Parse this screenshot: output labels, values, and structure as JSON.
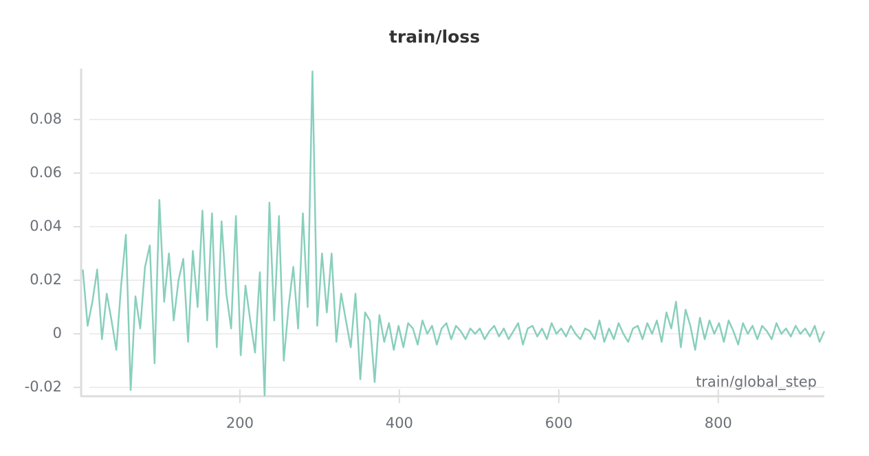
{
  "chart_data": {
    "type": "line",
    "title": "train/loss",
    "x_label": "train/global_step",
    "x": [
      3,
      9,
      15,
      21,
      27,
      33,
      39,
      45,
      51,
      57,
      63,
      69,
      75,
      81,
      87,
      93,
      99,
      105,
      111,
      117,
      123,
      129,
      135,
      141,
      147,
      153,
      159,
      165,
      171,
      177,
      183,
      189,
      195,
      201,
      207,
      213,
      219,
      225,
      231,
      237,
      243,
      249,
      255,
      261,
      267,
      273,
      279,
      285,
      291,
      297,
      303,
      309,
      315,
      321,
      327,
      333,
      339,
      345,
      351,
      357,
      363,
      369,
      375,
      381,
      387,
      393,
      399,
      405,
      411,
      417,
      423,
      429,
      435,
      441,
      447,
      453,
      459,
      465,
      471,
      477,
      483,
      489,
      495,
      501,
      507,
      513,
      519,
      525,
      531,
      537,
      543,
      549,
      555,
      561,
      567,
      573,
      579,
      585,
      591,
      597,
      603,
      609,
      615,
      621,
      627,
      633,
      639,
      645,
      651,
      657,
      663,
      669,
      675,
      681,
      687,
      693,
      699,
      705,
      711,
      717,
      723,
      729,
      735,
      741,
      747,
      753,
      759,
      765,
      771,
      777,
      783,
      789,
      795,
      801,
      807,
      813,
      819,
      825,
      831,
      837,
      843,
      849,
      855,
      861,
      867,
      873,
      879,
      885,
      891,
      897,
      903,
      909,
      915,
      921,
      927,
      933
    ],
    "series": [
      {
        "name": "train/loss",
        "color": "#88cfbc",
        "values": [
          0.024,
          0.003,
          0.012,
          0.024,
          -0.002,
          0.015,
          0.005,
          -0.006,
          0.018,
          0.037,
          -0.021,
          0.014,
          0.002,
          0.025,
          0.033,
          -0.011,
          0.05,
          0.012,
          0.03,
          0.005,
          0.02,
          0.028,
          -0.003,
          0.031,
          0.01,
          0.046,
          0.005,
          0.045,
          -0.005,
          0.042,
          0.015,
          0.002,
          0.044,
          -0.008,
          0.018,
          0.005,
          -0.007,
          0.023,
          -0.023,
          0.049,
          0.005,
          0.044,
          -0.01,
          0.01,
          0.025,
          0.002,
          0.045,
          0.01,
          0.098,
          0.003,
          0.03,
          0.008,
          0.03,
          -0.003,
          0.015,
          0.005,
          -0.005,
          0.015,
          -0.017,
          0.008,
          0.005,
          -0.018,
          0.007,
          -0.003,
          0.004,
          -0.006,
          0.003,
          -0.005,
          0.004,
          0.002,
          -0.004,
          0.005,
          0.0,
          0.003,
          -0.004,
          0.002,
          0.004,
          -0.002,
          0.003,
          0.001,
          -0.002,
          0.002,
          0.0,
          0.002,
          -0.002,
          0.001,
          0.003,
          -0.001,
          0.002,
          -0.002,
          0.001,
          0.004,
          -0.004,
          0.002,
          0.003,
          -0.001,
          0.002,
          -0.002,
          0.004,
          0.0,
          0.002,
          -0.001,
          0.003,
          0.0,
          -0.002,
          0.002,
          0.001,
          -0.002,
          0.005,
          -0.003,
          0.002,
          -0.002,
          0.004,
          0.0,
          -0.003,
          0.002,
          0.003,
          -0.002,
          0.004,
          0.0,
          0.005,
          -0.003,
          0.008,
          0.002,
          0.012,
          -0.005,
          0.009,
          0.003,
          -0.006,
          0.006,
          -0.002,
          0.005,
          0.0,
          0.004,
          -0.003,
          0.005,
          0.001,
          -0.004,
          0.004,
          0.0,
          0.003,
          -0.002,
          0.003,
          0.001,
          -0.002,
          0.004,
          0.0,
          0.002,
          -0.001,
          0.003,
          0.0,
          0.002,
          -0.001,
          0.003,
          -0.003,
          0.001
        ]
      }
    ],
    "xlim": [
      0,
      933
    ],
    "ylim": [
      -0.0233,
      0.099
    ],
    "xticks": [
      200,
      400,
      600,
      800
    ],
    "yticks": [
      -0.02,
      0,
      0.02,
      0.04,
      0.06,
      0.08
    ],
    "grid": true
  }
}
